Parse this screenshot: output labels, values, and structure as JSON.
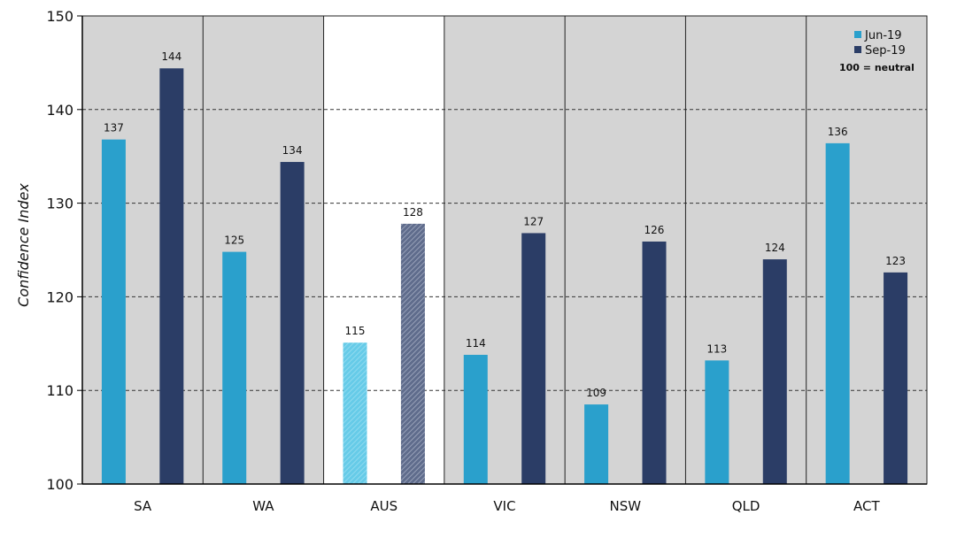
{
  "chart_data": {
    "type": "bar",
    "categories": [
      "SA",
      "WA",
      "AUS",
      "VIC",
      "NSW",
      "QLD",
      "ACT"
    ],
    "highlight_category": "AUS",
    "series": [
      {
        "name": "Jun-19",
        "values": [
          136.8,
          124.8,
          115.1,
          113.8,
          108.5,
          113.2,
          136.4
        ],
        "labels": [
          "137",
          "125",
          "115",
          "114",
          "109",
          "113",
          "136"
        ],
        "color": "#2aa0cc",
        "highlight_color": "#66cbe8"
      },
      {
        "name": "Sep-19",
        "values": [
          144.4,
          134.4,
          127.8,
          126.8,
          125.9,
          124.0,
          122.6
        ],
        "labels": [
          "144",
          "134",
          "128",
          "127",
          "126",
          "124",
          "123"
        ],
        "color": "#2b3d66",
        "highlight_color": "#7a86a3"
      }
    ],
    "title": "",
    "xlabel": "",
    "ylabel": "Confidence Index",
    "ylim": [
      100,
      150
    ],
    "yticks": [
      100,
      110,
      120,
      130,
      140,
      150
    ],
    "ytick_labels": [
      "100",
      "110",
      "120",
      "130",
      "140",
      "150"
    ],
    "grid": "horizontal dashed",
    "legend_position": "top-right",
    "legend_note": "100 = neutral",
    "plot_background": "#d4d4d4",
    "highlight_background": "#ffffff"
  }
}
